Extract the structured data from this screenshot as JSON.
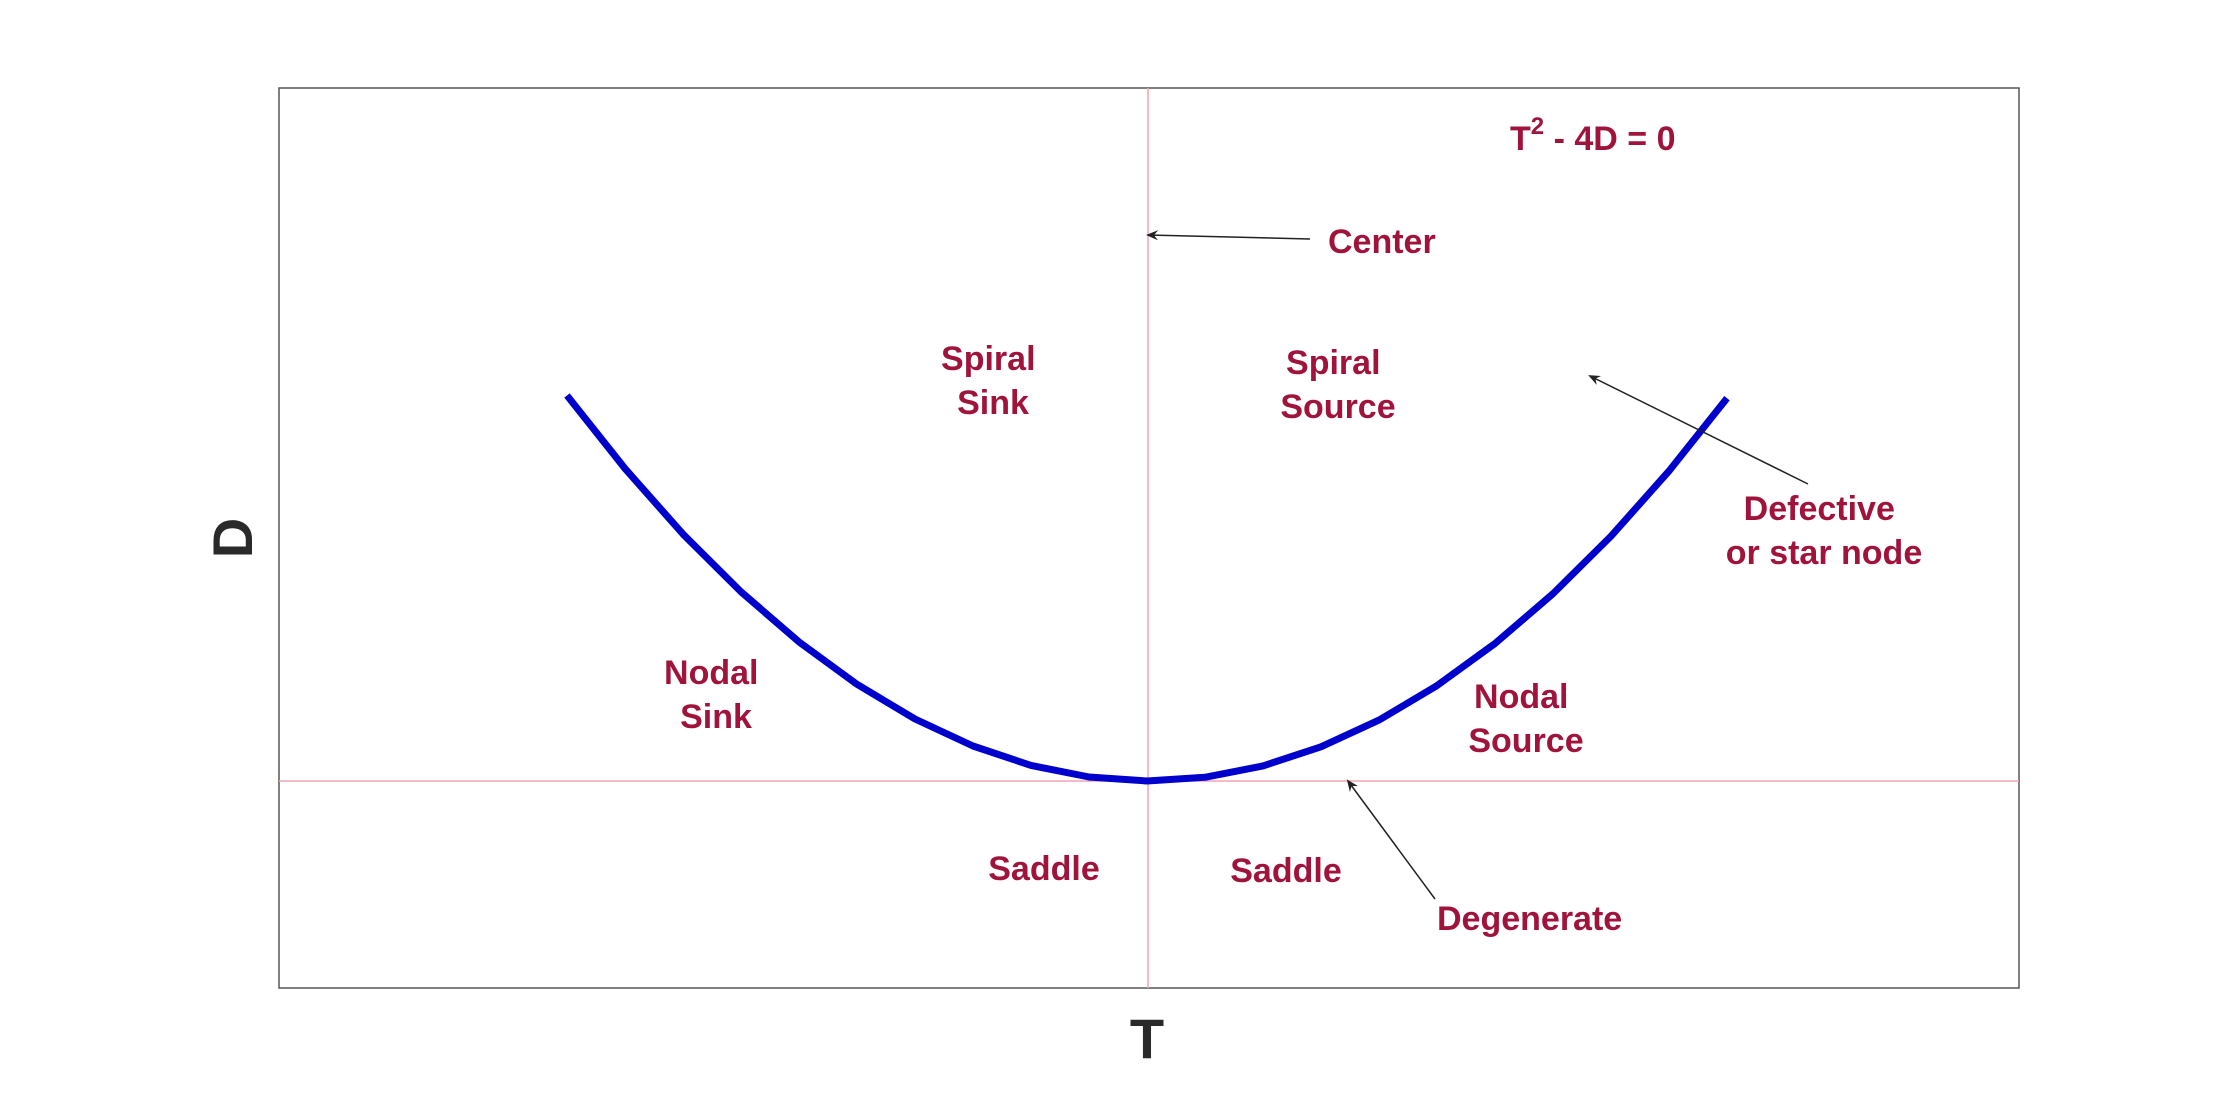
{
  "axes": {
    "x_label": "T",
    "y_label": "D"
  },
  "curve": {
    "equation_base": "T",
    "equation_exp": "2",
    "equation_rest": " - 4D = 0",
    "color": "#0000cc"
  },
  "regions": {
    "spiral_sink": [
      "Spiral",
      "Sink"
    ],
    "spiral_source": [
      "Spiral",
      "Source"
    ],
    "nodal_sink": [
      "Nodal",
      "Sink"
    ],
    "nodal_source": [
      "Nodal",
      "Source"
    ],
    "saddle_left": "Saddle",
    "saddle_right": "Saddle"
  },
  "annotations": {
    "center": "Center",
    "defective": [
      "Defective",
      "or star node"
    ],
    "degenerate": "Degenerate"
  },
  "colors": {
    "label": "#a0143c",
    "axis_line": "#f2a3b3",
    "frame": "#555555",
    "arrow": "#222222"
  }
}
